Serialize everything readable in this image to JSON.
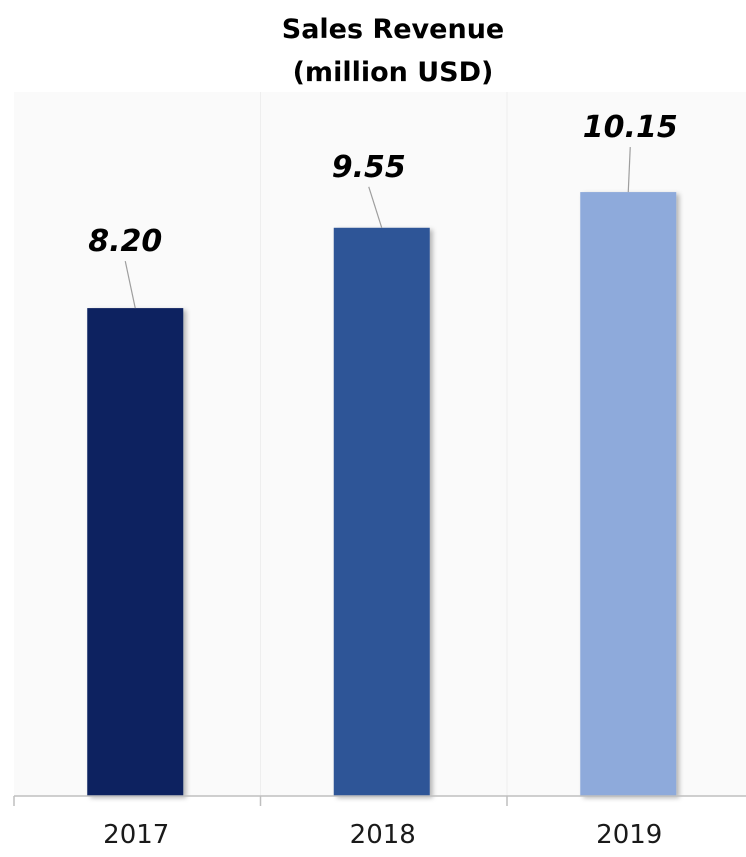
{
  "chart_data": {
    "type": "bar",
    "title_lines": [
      "Sales Revenue",
      "(million USD)"
    ],
    "categories": [
      "2017",
      "2018",
      "2019"
    ],
    "values": [
      8.2,
      9.55,
      10.15
    ],
    "value_labels": [
      "8.20",
      "9.55",
      "10.15"
    ],
    "ylim": [
      0,
      12
    ],
    "grid": "vertical",
    "legend": "none",
    "colors": [
      "#0b2060",
      "#2f5597",
      "#8eaadb"
    ]
  }
}
